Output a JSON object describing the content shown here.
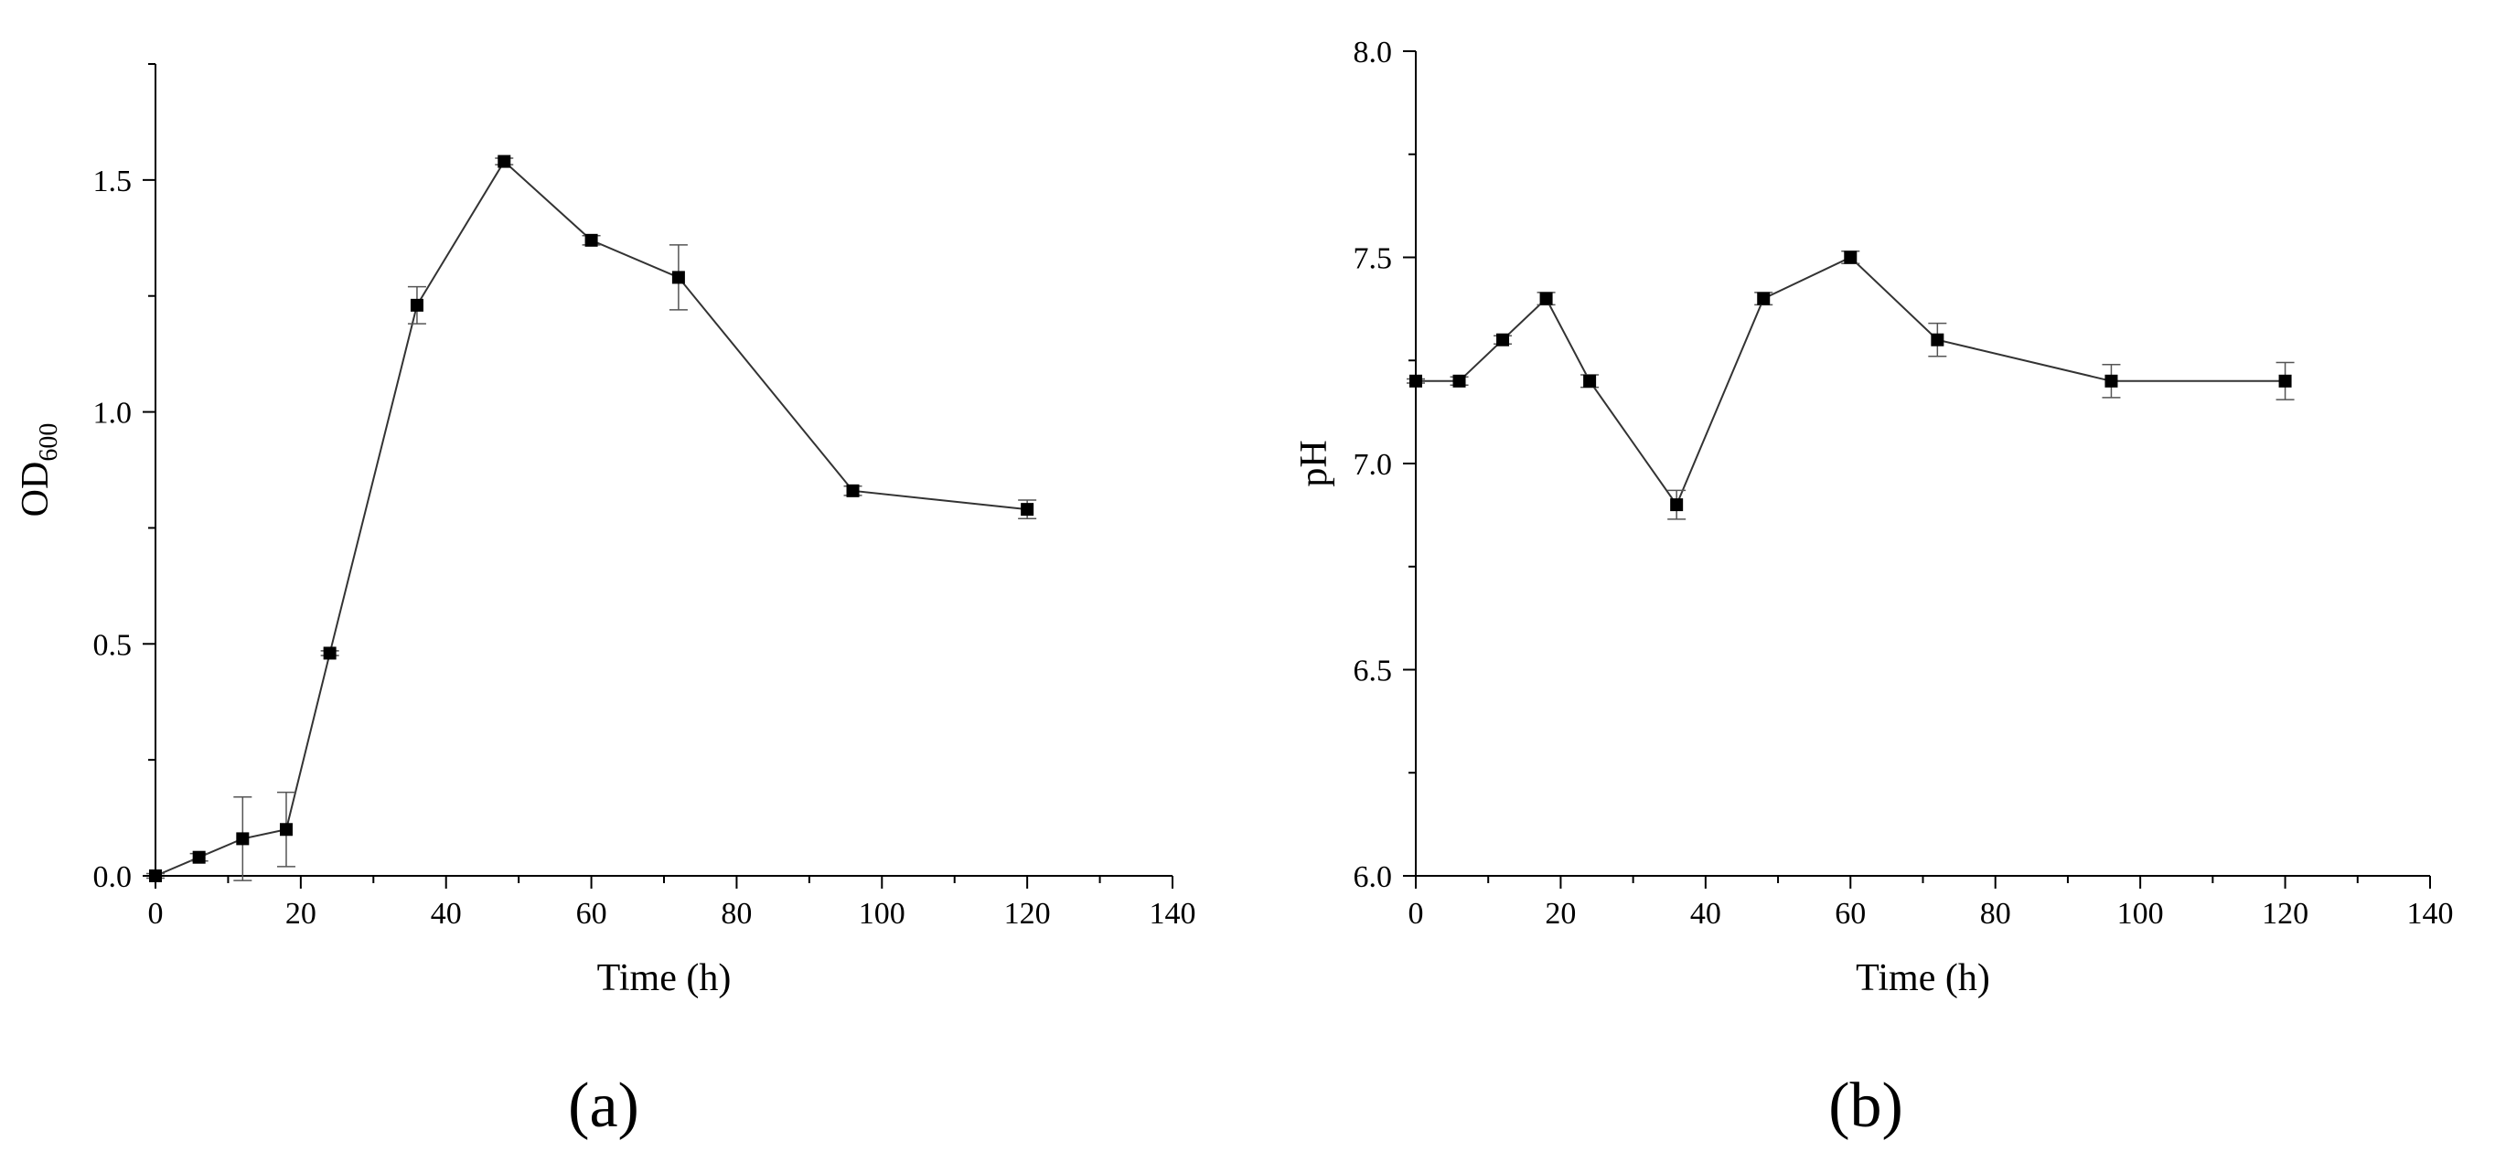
{
  "chart_data": [
    {
      "type": "line",
      "panel_label": "(a)",
      "xlabel": "Time (h)",
      "ylabel": "OD",
      "ylabel_subscript": "600",
      "xlim": [
        0,
        140
      ],
      "ylim": [
        0,
        1.75
      ],
      "x_ticks": [
        0,
        20,
        40,
        60,
        80,
        100,
        120,
        140
      ],
      "y_ticks": [
        0.0,
        0.5,
        1.0,
        1.5
      ],
      "y_tick_labels": [
        "0.0",
        "0.5",
        "1.0",
        "1.5"
      ],
      "grid": false,
      "marker": "square",
      "x": [
        0,
        6,
        12,
        18,
        24,
        36,
        48,
        60,
        72,
        96,
        120
      ],
      "y": [
        0.0,
        0.04,
        0.08,
        0.1,
        0.48,
        1.23,
        1.54,
        1.37,
        1.29,
        0.83,
        0.79
      ],
      "error": [
        0.005,
        0.008,
        0.09,
        0.08,
        0.005,
        0.04,
        0.007,
        0.01,
        0.07,
        0.01,
        0.02
      ]
    },
    {
      "type": "line",
      "panel_label": "(b)",
      "xlabel": "Time (h)",
      "ylabel": "pH",
      "xlim": [
        0,
        140
      ],
      "ylim": [
        6.0,
        8.0
      ],
      "x_ticks": [
        0,
        20,
        40,
        60,
        80,
        100,
        120,
        140
      ],
      "y_ticks": [
        6.0,
        6.5,
        7.0,
        7.5,
        8.0
      ],
      "y_tick_labels": [
        "6.0",
        "6.5",
        "7.0",
        "7.5",
        "8.0"
      ],
      "grid": false,
      "marker": "square",
      "x": [
        0,
        6,
        12,
        18,
        24,
        36,
        48,
        60,
        72,
        96,
        120
      ],
      "y": [
        7.2,
        7.2,
        7.3,
        7.4,
        7.2,
        6.9,
        7.4,
        7.5,
        7.3,
        7.2,
        7.2
      ],
      "error": [
        0.005,
        0.01,
        0.01,
        0.015,
        0.015,
        0.035,
        0.015,
        0.015,
        0.04,
        0.04,
        0.045
      ]
    }
  ]
}
